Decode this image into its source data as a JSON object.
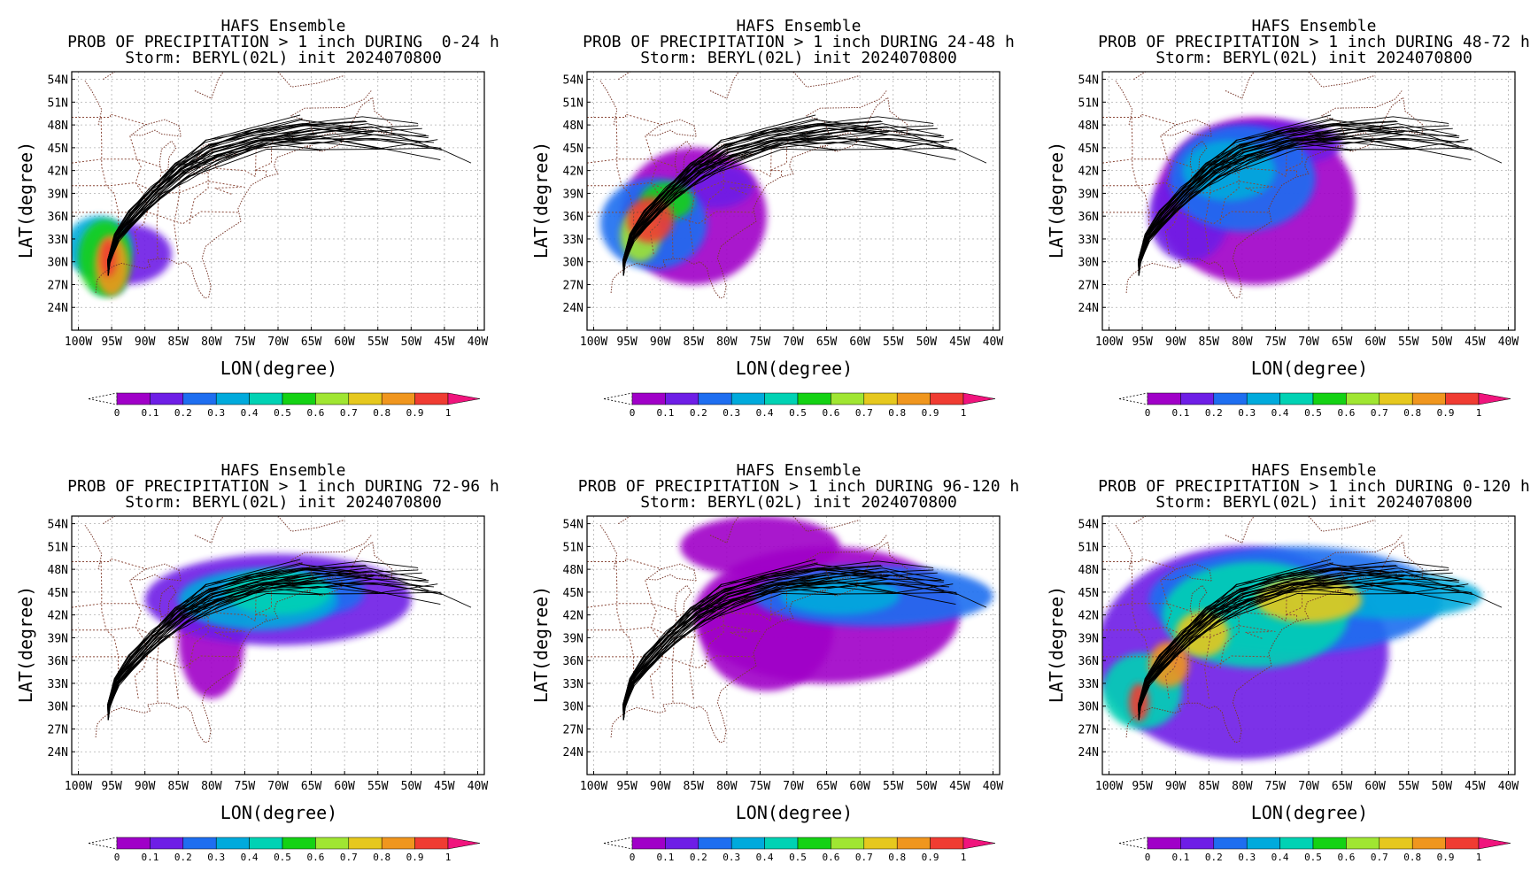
{
  "panels": [
    {
      "title": "HAFS Ensemble",
      "subtitle": "PROB OF PRECIPITATION > 1 inch DURING  0-24 h",
      "storm": "Storm: BERYL(02L) init 2024070800"
    },
    {
      "title": "HAFS Ensemble",
      "subtitle": "PROB OF PRECIPITATION > 1 inch DURING 24-48 h",
      "storm": "Storm: BERYL(02L) init 2024070800"
    },
    {
      "title": "HAFS Ensemble",
      "subtitle": "PROB OF PRECIPITATION > 1 inch DURING 48-72 h",
      "storm": "Storm: BERYL(02L) init 2024070800"
    },
    {
      "title": "HAFS Ensemble",
      "subtitle": "PROB OF PRECIPITATION > 1 inch DURING 72-96 h",
      "storm": "Storm: BERYL(02L) init 2024070800"
    },
    {
      "title": "HAFS Ensemble",
      "subtitle": "PROB OF PRECIPITATION > 1 inch DURING 96-120 h",
      "storm": "Storm: BERYL(02L) init 2024070800"
    },
    {
      "title": "HAFS Ensemble",
      "subtitle": "PROB OF PRECIPITATION > 1 inch DURING 0-120 h",
      "storm": "Storm: BERYL(02L) init 2024070800"
    }
  ],
  "chart_data": {
    "type": "heatmap",
    "xlabel": "LON(degree)",
    "ylabel": "LAT(degree)",
    "xlim": [
      -101,
      -39
    ],
    "ylim": [
      21,
      55
    ],
    "x_ticks": [
      -100,
      -95,
      -90,
      -85,
      -80,
      -75,
      -70,
      -65,
      -60,
      -55,
      -50,
      -45,
      -40
    ],
    "x_tick_labels": [
      "100W",
      "95W",
      "90W",
      "85W",
      "80W",
      "75W",
      "70W",
      "65W",
      "60W",
      "55W",
      "50W",
      "45W",
      "40W"
    ],
    "y_ticks": [
      24,
      27,
      30,
      33,
      36,
      39,
      42,
      45,
      48,
      51,
      54
    ],
    "y_tick_labels": [
      "24N",
      "27N",
      "30N",
      "33N",
      "36N",
      "39N",
      "42N",
      "45N",
      "48N",
      "51N",
      "54N"
    ],
    "grid": true,
    "colorbar": {
      "levels": [
        0,
        0.1,
        0.2,
        0.3,
        0.4,
        0.5,
        0.6,
        0.7,
        0.8,
        0.9,
        1
      ],
      "labels": [
        "0",
        "0.1",
        "0.2",
        "0.3",
        "0.4",
        "0.5",
        "0.6",
        "0.7",
        "0.8",
        "0.9",
        "1"
      ],
      "colors": [
        "#a000c8",
        "#6e1ee6",
        "#1e6ef0",
        "#00aadc",
        "#00d2b4",
        "#14d214",
        "#a0e632",
        "#e6c81e",
        "#f0961e",
        "#f03c32",
        "#f0147d"
      ]
    },
    "mean_track": [
      [
        -95.5,
        28.2
      ],
      [
        -95.3,
        30
      ],
      [
        -94,
        33
      ],
      [
        -91.5,
        35.5
      ],
      [
        -88,
        38.5
      ],
      [
        -84,
        41.5
      ],
      [
        -79,
        43.8
      ],
      [
        -72,
        45.5
      ],
      [
        -64,
        46.2
      ],
      [
        -55,
        46.0
      ],
      [
        -46,
        45.0
      ],
      [
        -41,
        43.0
      ]
    ],
    "panels": [
      {
        "hours": "0-24",
        "blobs": [
          [
            -95.5,
            30.5,
            1.2,
            2.5,
            0.95
          ],
          [
            -95,
            29.5,
            2.5,
            4,
            0.8
          ],
          [
            -96,
            30.5,
            4,
            5,
            0.55
          ],
          [
            -97,
            32,
            5,
            4,
            0.3
          ],
          [
            -93,
            31,
            7,
            4,
            0.15
          ],
          [
            -95.5,
            26.8,
            2.5,
            1.2,
            0.3
          ]
        ]
      },
      {
        "hours": "24-48",
        "blobs": [
          [
            -91.5,
            35.5,
            3.5,
            3,
            0.9
          ],
          [
            -93,
            33.5,
            3,
            3.5,
            0.65
          ],
          [
            -89,
            38,
            4,
            2.5,
            0.5
          ],
          [
            -91,
            35,
            8,
            6,
            0.25
          ],
          [
            -85,
            36,
            11,
            9,
            0.08
          ],
          [
            -82,
            40,
            6,
            3,
            0.1
          ]
        ]
      },
      {
        "hours": "48-72",
        "blobs": [
          [
            -82,
            42,
            7,
            4,
            0.35
          ],
          [
            -80,
            41,
            11,
            7,
            0.25
          ],
          [
            -78,
            38,
            15,
            11,
            0.08
          ],
          [
            -75,
            45.5,
            10,
            3,
            0.12
          ],
          [
            -88,
            36,
            6,
            6,
            0.1
          ]
        ]
      },
      {
        "hours": "72-96",
        "blobs": [
          [
            -70,
            45,
            8,
            3,
            0.45
          ],
          [
            -73,
            44,
            12,
            4,
            0.3
          ],
          [
            -70,
            44,
            20,
            6,
            0.12
          ],
          [
            -80,
            39,
            5,
            8,
            0.08
          ],
          [
            -64,
            45,
            7,
            3,
            0.2
          ]
        ]
      },
      {
        "hours": "96-120",
        "blobs": [
          [
            -63,
            44.5,
            9,
            2.5,
            0.35
          ],
          [
            -58,
            44.5,
            18,
            4,
            0.2
          ],
          [
            -65,
            42,
            20,
            9,
            0.08
          ],
          [
            -74,
            40,
            10,
            8,
            0.08
          ],
          [
            -75,
            51,
            12,
            4,
            0.08
          ]
        ]
      },
      {
        "hours": "0-120",
        "blobs": [
          [
            -95.5,
            30.5,
            1.5,
            2.5,
            0.95
          ],
          [
            -91,
            35.5,
            3,
            3,
            0.85
          ],
          [
            -86,
            39.5,
            4,
            3,
            0.7
          ],
          [
            -70,
            44,
            8,
            3,
            0.7
          ],
          [
            -78,
            42,
            14,
            7,
            0.4
          ],
          [
            -72,
            44,
            22,
            7,
            0.25
          ],
          [
            -58,
            44.5,
            14,
            3,
            0.3
          ],
          [
            -80,
            37,
            22,
            14,
            0.1
          ],
          [
            -95,
            32,
            6,
            5,
            0.4
          ]
        ]
      }
    ]
  }
}
